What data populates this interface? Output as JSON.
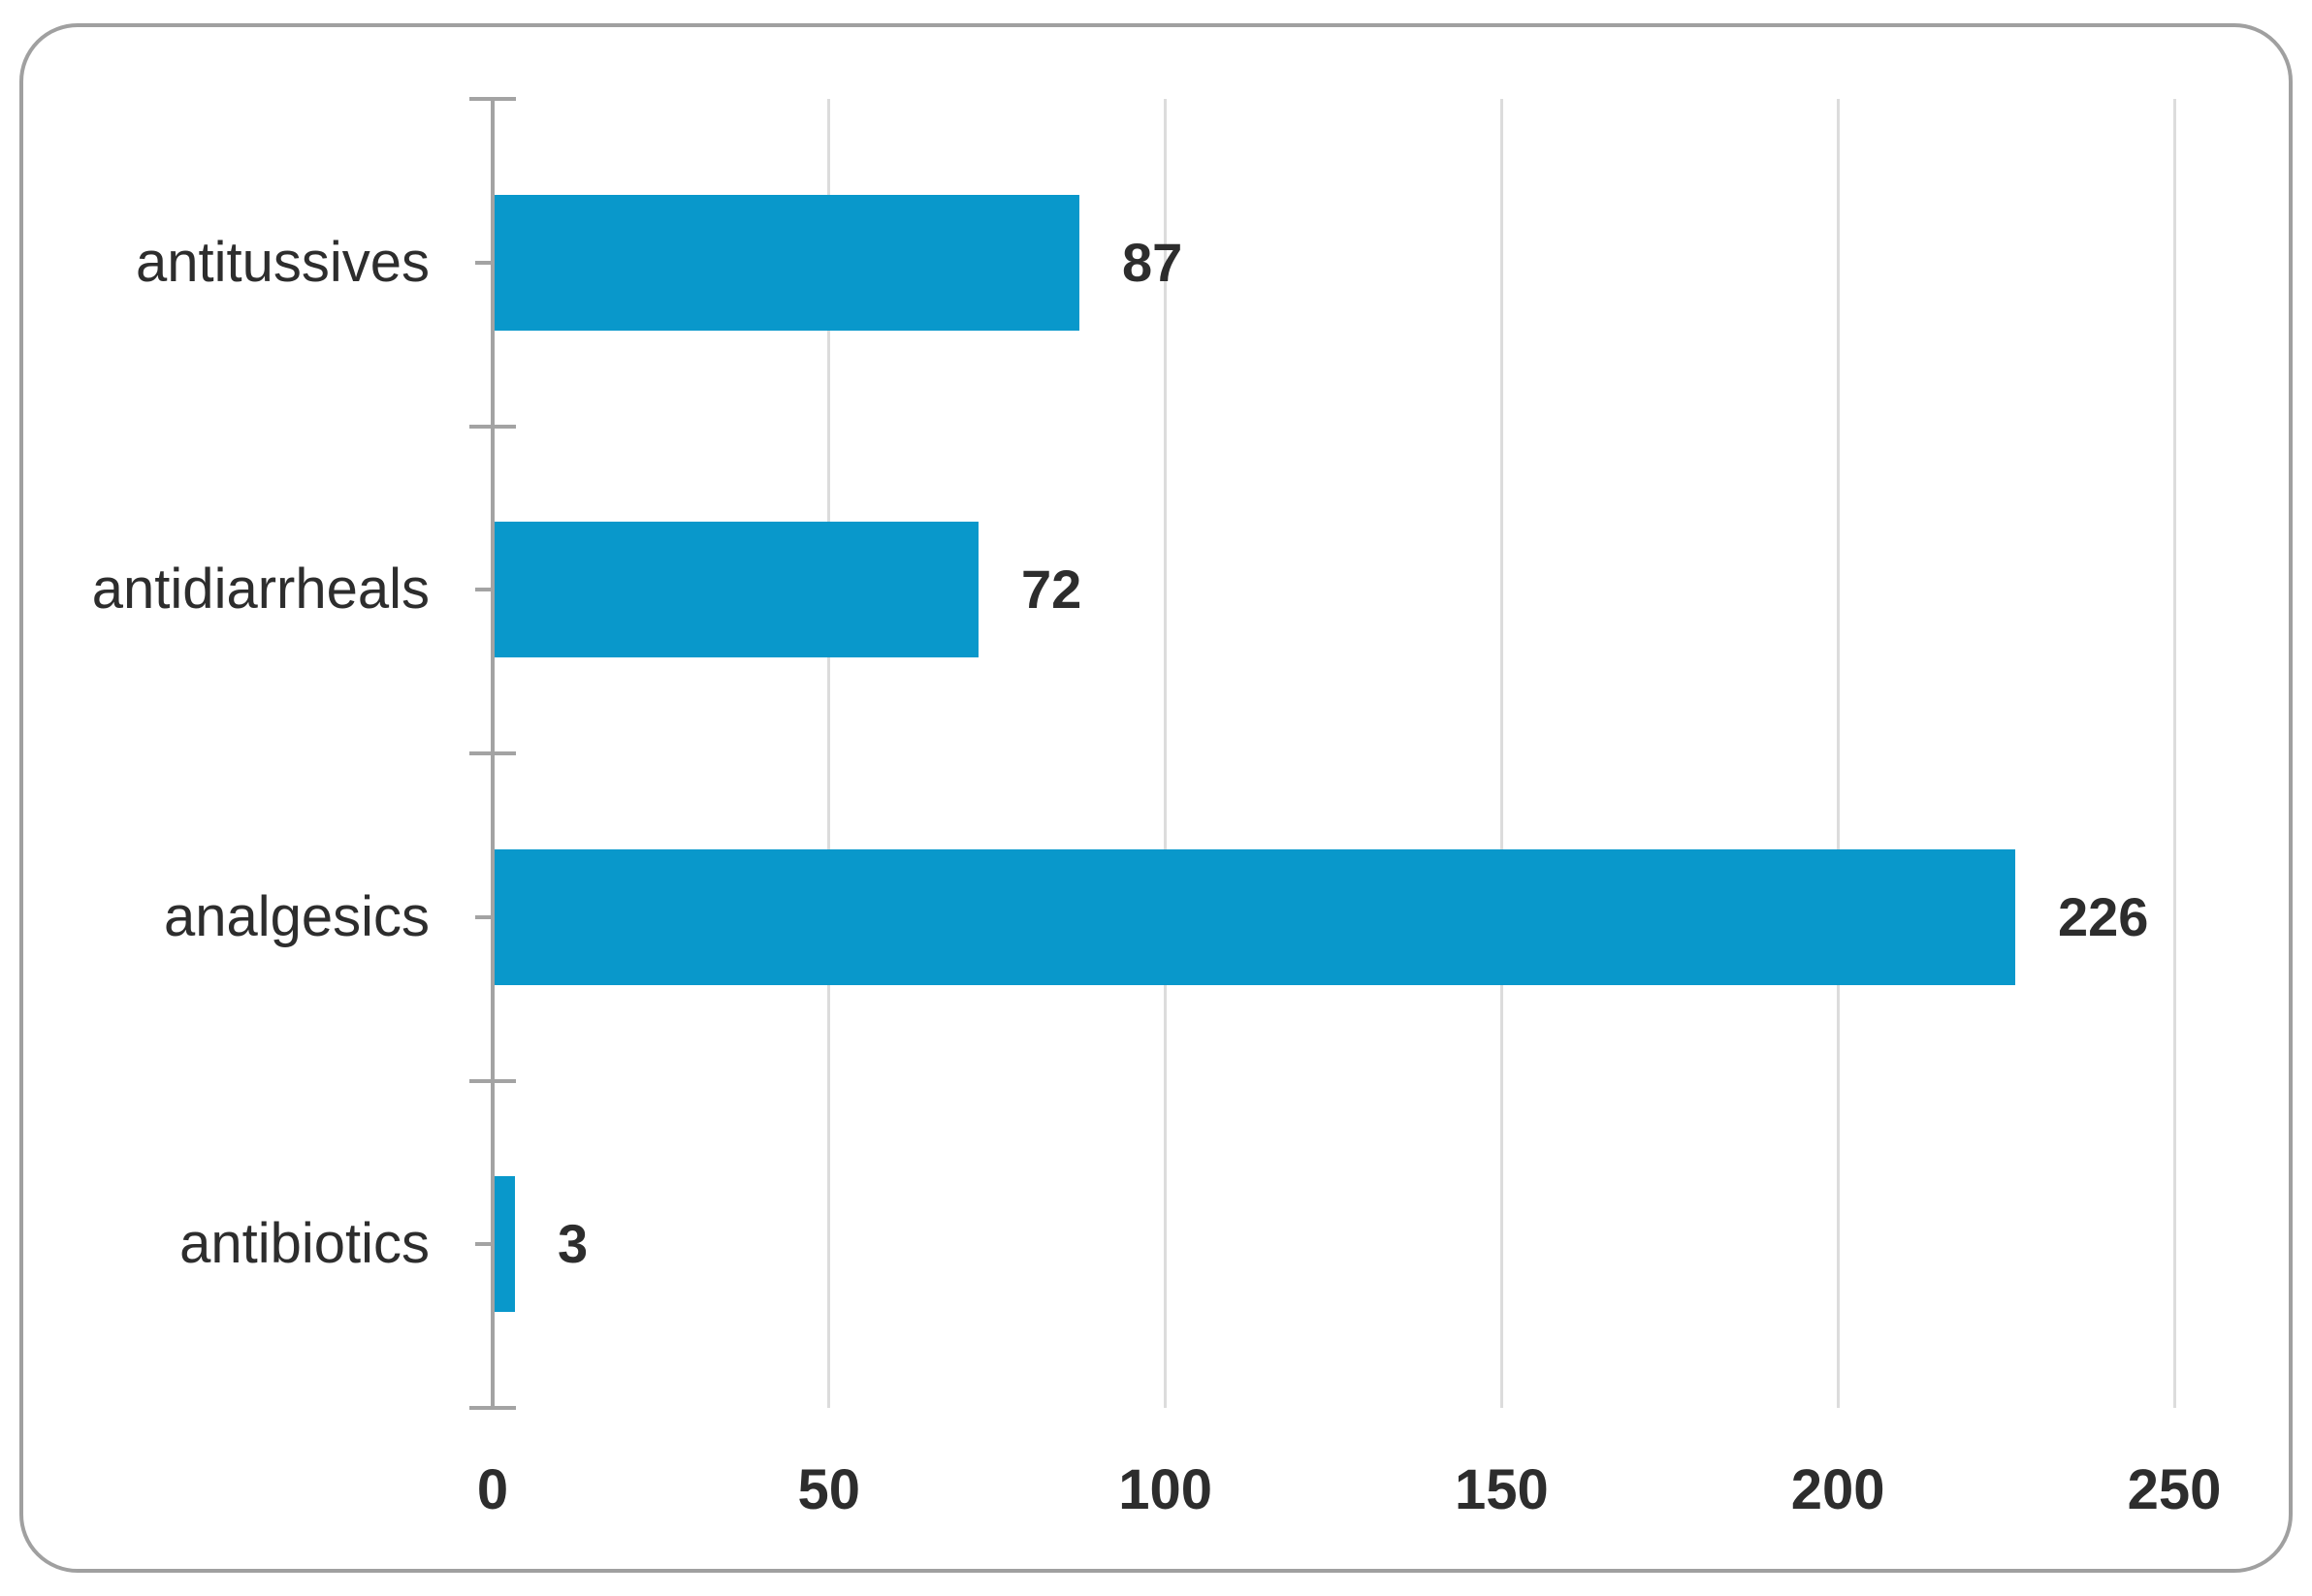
{
  "chart_data": {
    "type": "bar",
    "orientation": "horizontal",
    "title": "",
    "xlabel": "",
    "ylabel": "",
    "categories": [
      "antitussives",
      "antidiarrheals",
      "analgesics",
      "antibiotics"
    ],
    "values": [
      87,
      72,
      226,
      3
    ],
    "data_labels_shown": true,
    "xlim": [
      0,
      250
    ],
    "xticks": [
      0,
      50,
      100,
      150,
      200,
      250
    ],
    "grid": "vertical-only",
    "legend": "none",
    "colors": {
      "bar": "#0998cb",
      "axis": "#a3a3a3",
      "gridline": "#dcdcdc",
      "text": "#2d2d2d",
      "card_border": "#a0a0a0",
      "background": "#ffffff"
    }
  }
}
